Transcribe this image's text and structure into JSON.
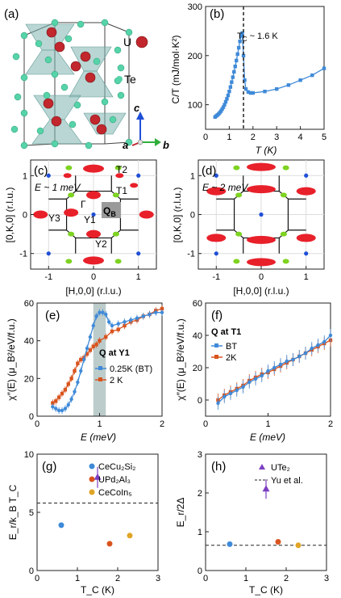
{
  "chart_data": [
    {
      "panel": "(a)",
      "type": "other",
      "description_labels": [
        "U",
        "Te",
        "c",
        "a",
        "b"
      ],
      "colors": {
        "U": "#c1272d",
        "Te": "#56d3a8",
        "polyhedra": "#7fb5b0"
      }
    },
    {
      "panel": "(b)",
      "type": "line",
      "xlabel": "T (K)",
      "ylabel": "C/T (mJ/mol·K²)",
      "xlim": [
        0,
        5
      ],
      "ylim": [
        50,
        300
      ],
      "xticks": [
        "0",
        "1",
        "2",
        "3",
        "4",
        "5"
      ],
      "yticks": [
        "100",
        "200",
        "300"
      ],
      "annotation": "T_C ~ 1.6 K",
      "vline_x": 1.6,
      "series": [
        {
          "values": [
            [
              0.4,
              75
            ],
            [
              0.45,
              77
            ],
            [
              0.5,
              79
            ],
            [
              0.55,
              81
            ],
            [
              0.6,
              84
            ],
            [
              0.65,
              87
            ],
            [
              0.7,
              91
            ],
            [
              0.75,
              95
            ],
            [
              0.8,
              100
            ],
            [
              0.85,
              106
            ],
            [
              0.9,
              112
            ],
            [
              0.95,
              119
            ],
            [
              1.0,
              127
            ],
            [
              1.05,
              136
            ],
            [
              1.1,
              146
            ],
            [
              1.15,
              156
            ],
            [
              1.2,
              167
            ],
            [
              1.25,
              178
            ],
            [
              1.3,
              190
            ],
            [
              1.35,
              203
            ],
            [
              1.4,
              216
            ],
            [
              1.45,
              229
            ],
            [
              1.5,
              240
            ],
            [
              1.55,
              246
            ],
            [
              1.6,
              200
            ],
            [
              1.65,
              150
            ],
            [
              1.7,
              132
            ],
            [
              1.8,
              126
            ],
            [
              1.9,
              124
            ],
            [
              2.0,
              124
            ],
            [
              2.5,
              127
            ],
            [
              3.0,
              132
            ],
            [
              3.5,
              140
            ],
            [
              4.0,
              150
            ],
            [
              4.5,
              160
            ],
            [
              5.0,
              174
            ]
          ],
          "color": "#3f8ad8"
        }
      ]
    },
    {
      "panel": "(c)",
      "type": "scatter",
      "xlabel": "[H,0,0] (r.l.u.)",
      "ylabel": "[0,K,0] (r.l.u.)",
      "xlim": [
        -1.4,
        1.4
      ],
      "ylim": [
        -1.4,
        1.4
      ],
      "xticks": [
        "-1",
        "0",
        "1"
      ],
      "yticks": [
        "-1",
        "0",
        "1"
      ],
      "annotation": "E ~ 1 meV",
      "point_labels": [
        "T2",
        "T1",
        "Γ",
        "Y1",
        "Y3",
        "Y2",
        "Q_B"
      ],
      "red_spots": [
        [
          0,
          1
        ],
        [
          0,
          -1
        ],
        [
          -1,
          0
        ],
        [
          1,
          0
        ],
        [
          -1,
          1
        ],
        [
          1,
          1
        ],
        [
          -1,
          -1
        ],
        [
          1,
          -1
        ]
      ],
      "blue_dots": [
        [
          1,
          1
        ],
        [
          -1,
          1
        ],
        [
          -1,
          -1
        ],
        [
          1,
          -1
        ],
        [
          0,
          0
        ]
      ]
    },
    {
      "panel": "(d)",
      "type": "scatter",
      "xlabel": "[H,0,0] (r.l.u.)",
      "ylabel": "[0,K,0] (r.l.u.)",
      "xlim": [
        -1.4,
        1.4
      ],
      "ylim": [
        -1.4,
        1.4
      ],
      "xticks": [
        "-1",
        "0",
        "1"
      ],
      "yticks": [
        "-1",
        "0",
        "1"
      ],
      "annotation": "E ~ 2 meV"
    },
    {
      "panel": "(e)",
      "type": "line",
      "xlabel": "E (meV)",
      "ylabel": "χ″(E) (μ_B²/eV/f.u.)",
      "xlim": [
        0,
        2
      ],
      "ylim": [
        0,
        60
      ],
      "xticks": [
        "0",
        "1",
        "2"
      ],
      "yticks": [
        "0",
        "20",
        "40",
        "60"
      ],
      "legend_title": "Q at Y1",
      "shaded_band": [
        0.9,
        1.1
      ],
      "series": [
        {
          "name": "0.25K (BT)",
          "color": "#3f8ad8",
          "values": [
            [
              0.25,
              5
            ],
            [
              0.3,
              4
            ],
            [
              0.35,
              3
            ],
            [
              0.4,
              3
            ],
            [
              0.45,
              4
            ],
            [
              0.5,
              6
            ],
            [
              0.55,
              9
            ],
            [
              0.6,
              13
            ],
            [
              0.65,
              18
            ],
            [
              0.7,
              24
            ],
            [
              0.75,
              30
            ],
            [
              0.8,
              36
            ],
            [
              0.85,
              42
            ],
            [
              0.9,
              48
            ],
            [
              0.95,
              53
            ],
            [
              1.0,
              55
            ],
            [
              1.05,
              55
            ],
            [
              1.1,
              54
            ],
            [
              1.15,
              50
            ],
            [
              1.2,
              48
            ],
            [
              1.3,
              49
            ],
            [
              1.4,
              50
            ],
            [
              1.5,
              51
            ],
            [
              1.6,
              52
            ],
            [
              1.7,
              53
            ],
            [
              1.8,
              54
            ],
            [
              1.9,
              55
            ],
            [
              2.0,
              55
            ]
          ]
        },
        {
          "name": "2 K",
          "color": "#d9541e",
          "values": [
            [
              0.25,
              7
            ],
            [
              0.3,
              8
            ],
            [
              0.35,
              10
            ],
            [
              0.4,
              12
            ],
            [
              0.45,
              14
            ],
            [
              0.5,
              17
            ],
            [
              0.55,
              20
            ],
            [
              0.6,
              24
            ],
            [
              0.65,
              28
            ],
            [
              0.7,
              30
            ],
            [
              0.75,
              31
            ],
            [
              0.8,
              33
            ],
            [
              0.85,
              35
            ],
            [
              0.9,
              37
            ],
            [
              0.95,
              38
            ],
            [
              1.0,
              40
            ],
            [
              1.1,
              42
            ],
            [
              1.2,
              45
            ],
            [
              1.3,
              46
            ],
            [
              1.4,
              48
            ],
            [
              1.5,
              50
            ],
            [
              1.6,
              51
            ],
            [
              1.7,
              53
            ],
            [
              1.8,
              54
            ],
            [
              1.9,
              56
            ],
            [
              2.0,
              57
            ]
          ]
        }
      ]
    },
    {
      "panel": "(f)",
      "type": "line",
      "xlabel": "E (meV)",
      "ylabel": "χ″(E) (μ_B²/eV/f.u.)",
      "xlim": [
        0,
        2
      ],
      "ylim": [
        -10,
        60
      ],
      "xticks": [
        "0",
        "1",
        "2"
      ],
      "yticks": [
        "0",
        "20",
        "40",
        "60"
      ],
      "legend_title": "Q at T1",
      "series": [
        {
          "name": "BT",
          "color": "#3f8ad8",
          "values": [
            [
              0.2,
              -2
            ],
            [
              0.3,
              2
            ],
            [
              0.4,
              4
            ],
            [
              0.5,
              6
            ],
            [
              0.6,
              8
            ],
            [
              0.7,
              11
            ],
            [
              0.8,
              13
            ],
            [
              0.9,
              15
            ],
            [
              1.0,
              18
            ],
            [
              1.1,
              20
            ],
            [
              1.2,
              22
            ],
            [
              1.3,
              24
            ],
            [
              1.4,
              25
            ],
            [
              1.5,
              27
            ],
            [
              1.6,
              29
            ],
            [
              1.7,
              32
            ],
            [
              1.8,
              34
            ],
            [
              1.9,
              36
            ],
            [
              2.0,
              40
            ]
          ]
        },
        {
          "name": "2K",
          "color": "#d9541e",
          "values": [
            [
              0.2,
              0
            ],
            [
              0.3,
              3
            ],
            [
              0.4,
              5
            ],
            [
              0.5,
              7
            ],
            [
              0.6,
              9
            ],
            [
              0.7,
              12
            ],
            [
              0.8,
              14
            ],
            [
              0.9,
              16
            ],
            [
              1.0,
              17
            ],
            [
              1.1,
              19
            ],
            [
              1.2,
              21
            ],
            [
              1.3,
              23
            ],
            [
              1.4,
              25
            ],
            [
              1.5,
              27
            ],
            [
              1.6,
              29
            ],
            [
              1.7,
              31
            ],
            [
              1.8,
              33
            ],
            [
              1.9,
              35
            ],
            [
              2.0,
              37
            ]
          ]
        }
      ]
    },
    {
      "panel": "(g)",
      "type": "scatter",
      "xlabel": "T_C (K)",
      "ylabel": "E_r/k_B T_C",
      "xlim": [
        0,
        3
      ],
      "ylim": [
        0,
        10
      ],
      "xticks": [
        "0",
        "1",
        "2",
        "3"
      ],
      "yticks": [
        "0",
        "5",
        "10"
      ],
      "hline_y": 5.8,
      "series": [
        {
          "name": "CeCu₂Si₂",
          "color": "#3f8ad8",
          "x": 0.6,
          "y": 3.9
        },
        {
          "name": "UPd₂Al₃",
          "color": "#d9541e",
          "x": 1.8,
          "y": 2.3
        },
        {
          "name": "CeCoIn₅",
          "color": "#e0a526",
          "x": 2.3,
          "y": 3.0
        },
        {
          "name": "UTe₂",
          "color": "#7d3fc2",
          "x": 1.5,
          "y": 8.0,
          "err": 0.9
        }
      ]
    },
    {
      "panel": "(h)",
      "type": "scatter",
      "xlabel": "T_C (K)",
      "ylabel": "E_r/2Δ",
      "xlim": [
        0,
        3
      ],
      "ylim": [
        0,
        3
      ],
      "xticks": [
        "0",
        "1",
        "2",
        "3"
      ],
      "yticks": [
        "0",
        "1",
        "2",
        "3"
      ],
      "hline_y": 0.65,
      "legend": [
        "UTe₂",
        "Yu et al."
      ],
      "series": [
        {
          "name": "CeCu₂Si₂",
          "color": "#3f8ad8",
          "x": 0.6,
          "y": 0.68
        },
        {
          "name": "UPd₂Al₃",
          "color": "#d9541e",
          "x": 1.8,
          "y": 0.74
        },
        {
          "name": "CeCoIn₅",
          "color": "#e0a526",
          "x": 2.3,
          "y": 0.65
        },
        {
          "name": "UTe₂",
          "color": "#7d3fc2",
          "x": 1.5,
          "y": 2.1,
          "err": 0.25
        }
      ]
    }
  ],
  "labels": {
    "a": "(a)",
    "b": "(b)",
    "c": "(c)",
    "d": "(d)",
    "e": "(e)",
    "f": "(f)",
    "g": "(g)",
    "h": "(h)",
    "U": "U",
    "Te": "Te",
    "axis_c": "c",
    "axis_a": "a",
    "axis_b": "b",
    "tc_b": "T",
    "tc_b_sub": "C",
    "tc_b_rest": " ~ 1.6 K",
    "b_ylabel": "C/T (mJ/mol·K²)",
    "b_xlabel": "T (K)",
    "T2": "T2",
    "T1": "T1",
    "Gamma": "Γ",
    "Y1": "Y1",
    "Y3": "Y3",
    "Y2": "Y2",
    "QB": "Q",
    "QB_sub": "B",
    "E1meV": "E ~ 1 meV",
    "E2meV": "E ~ 2 meV",
    "map_ylabel": "[0,K,0] (r.l.u.)",
    "map_xlabel": "[H,0,0] (r.l.u.)",
    "e_legend_title": "Q at Y1",
    "e_leg1": "0.25K (BT)",
    "e_leg2": "2 K",
    "f_legend_title": "Q at T1",
    "f_leg1": "BT",
    "f_leg2": "2K",
    "chi_ylabel": "χ″(E) (μ_B²/eV/f.u.)",
    "E_xlabel": "E (meV)",
    "g_ylabel": "E_r/k_B T_C",
    "g_leg1": "CeCu₂Si₂",
    "g_leg2": "UPd₂Al₃",
    "g_leg3": "CeCoIn₅",
    "h_ylabel": "E_r/2Δ",
    "h_leg1": "UTe₂",
    "h_leg2": "Yu et al.",
    "tc_xlabel": "T_C (K)"
  }
}
